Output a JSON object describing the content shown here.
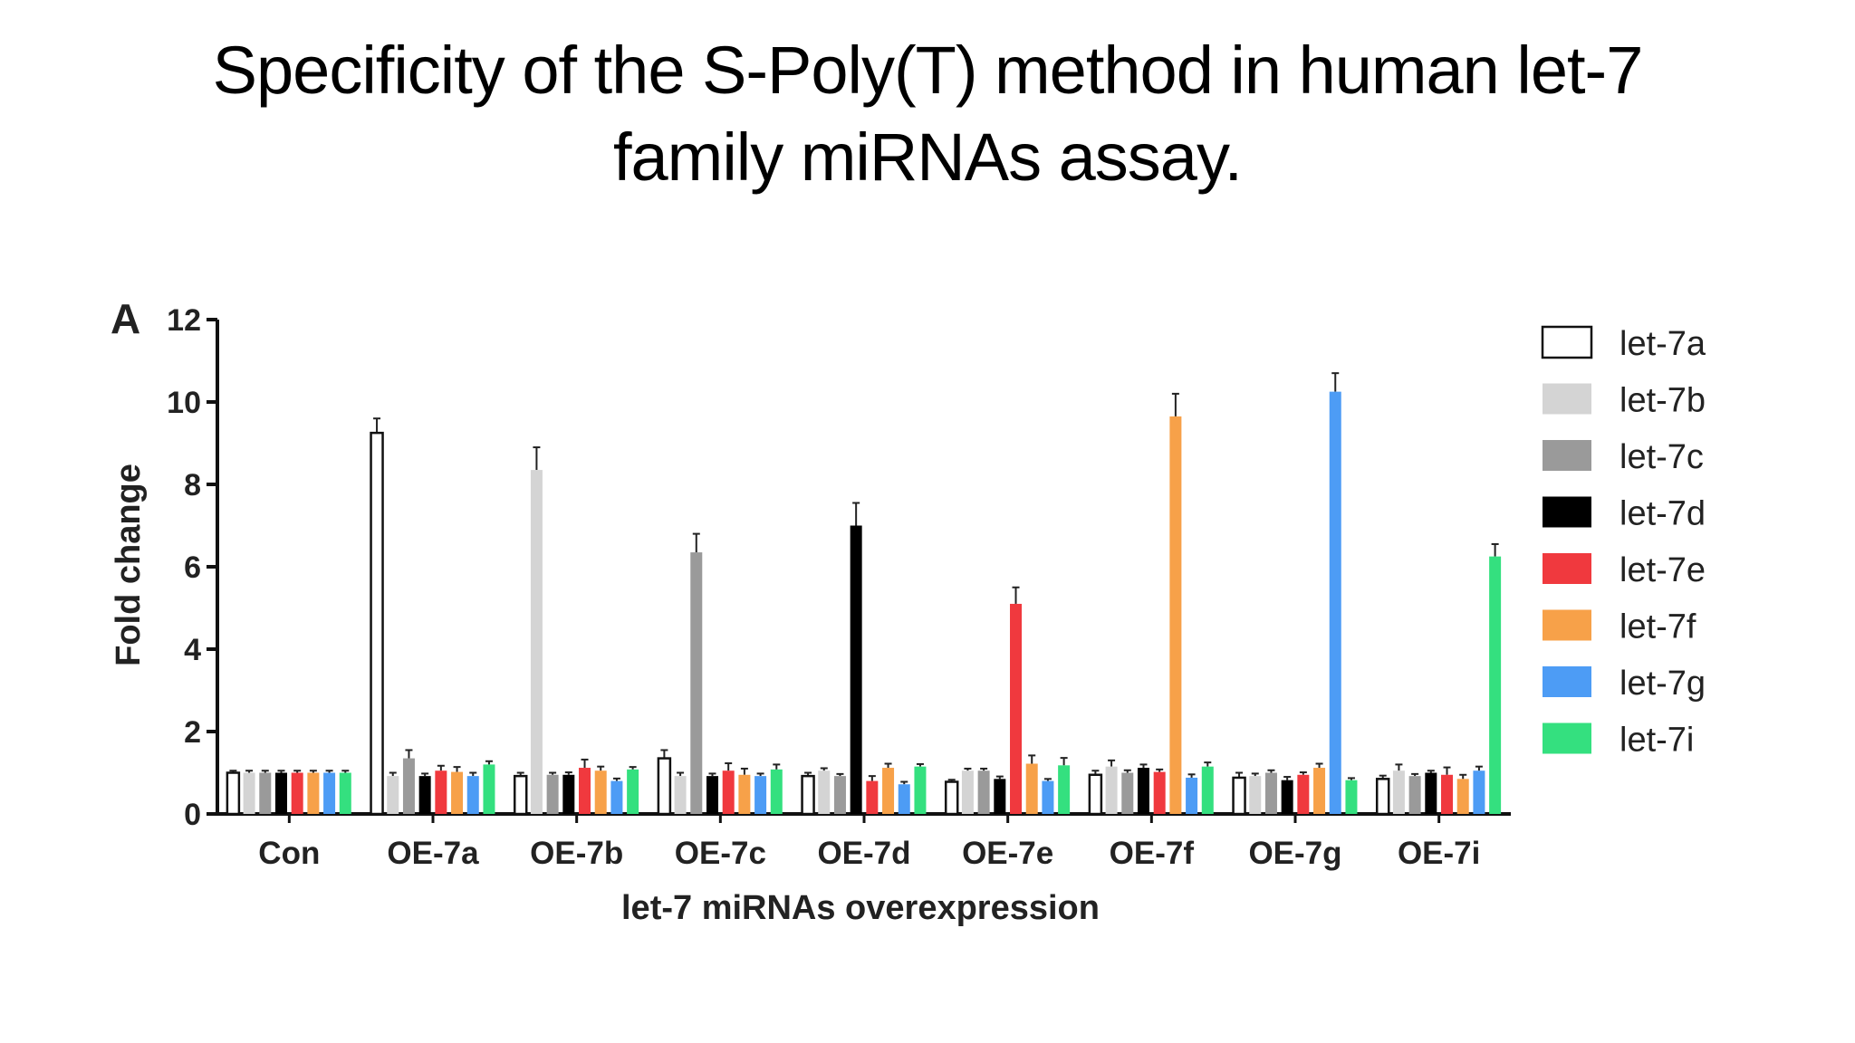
{
  "slide": {
    "title_line1": "Specificity of the S-Poly(T) method in human let-7",
    "title_line2": "family miRNAs assay."
  },
  "chart_data": {
    "type": "bar",
    "panel_label": "A",
    "xlabel": "let-7 miRNAs overexpression",
    "ylabel": "Fold change",
    "ylim": [
      0,
      12
    ],
    "yticks": [
      0,
      2,
      4,
      6,
      8,
      10,
      12
    ],
    "grid": false,
    "legend_position": "right",
    "categories": [
      "Con",
      "OE-7a",
      "OE-7b",
      "OE-7c",
      "OE-7d",
      "OE-7e",
      "OE-7f",
      "OE-7g",
      "OE-7i"
    ],
    "series": [
      {
        "name": "let-7a",
        "color": "#ffffff",
        "values": [
          1.0,
          9.25,
          0.92,
          1.35,
          0.92,
          0.78,
          0.95,
          0.88,
          0.85
        ],
        "errors": [
          0.05,
          0.35,
          0.08,
          0.2,
          0.08,
          0.05,
          0.1,
          0.12,
          0.08
        ]
      },
      {
        "name": "let-7b",
        "color": "#d4d4d4",
        "values": [
          1.0,
          0.92,
          8.35,
          0.92,
          1.05,
          1.05,
          1.15,
          0.92,
          1.05
        ],
        "errors": [
          0.05,
          0.08,
          0.55,
          0.08,
          0.06,
          0.05,
          0.15,
          0.06,
          0.15
        ]
      },
      {
        "name": "let-7c",
        "color": "#9a9a9a",
        "values": [
          1.0,
          1.35,
          0.95,
          6.35,
          0.92,
          1.05,
          1.0,
          1.0,
          0.92
        ],
        "errors": [
          0.05,
          0.2,
          0.05,
          0.45,
          0.05,
          0.05,
          0.06,
          0.06,
          0.05
        ]
      },
      {
        "name": "let-7d",
        "color": "#000000",
        "values": [
          1.0,
          0.92,
          0.95,
          0.92,
          7.0,
          0.85,
          1.12,
          0.82,
          1.0
        ],
        "errors": [
          0.05,
          0.06,
          0.06,
          0.06,
          0.55,
          0.06,
          0.08,
          0.08,
          0.05
        ]
      },
      {
        "name": "let-7e",
        "color": "#f0393e",
        "values": [
          1.0,
          1.05,
          1.12,
          1.05,
          0.8,
          5.1,
          1.02,
          0.95,
          0.95
        ],
        "errors": [
          0.05,
          0.12,
          0.2,
          0.18,
          0.12,
          0.4,
          0.06,
          0.06,
          0.18
        ]
      },
      {
        "name": "let-7f",
        "color": "#f7a149",
        "values": [
          1.0,
          1.02,
          1.05,
          0.95,
          1.12,
          1.22,
          9.65,
          1.12,
          0.85
        ],
        "errors": [
          0.05,
          0.12,
          0.1,
          0.15,
          0.1,
          0.2,
          0.55,
          0.1,
          0.1
        ]
      },
      {
        "name": "let-7g",
        "color": "#4d9cf5",
        "values": [
          1.0,
          0.92,
          0.8,
          0.92,
          0.72,
          0.8,
          0.88,
          10.25,
          1.05
        ],
        "errors": [
          0.05,
          0.08,
          0.06,
          0.06,
          0.06,
          0.05,
          0.08,
          0.45,
          0.1
        ]
      },
      {
        "name": "let-7i",
        "color": "#34e07f",
        "values": [
          1.0,
          1.2,
          1.08,
          1.08,
          1.15,
          1.18,
          1.15,
          0.82,
          6.25
        ],
        "errors": [
          0.05,
          0.08,
          0.06,
          0.12,
          0.06,
          0.18,
          0.1,
          0.05,
          0.3
        ]
      }
    ]
  }
}
